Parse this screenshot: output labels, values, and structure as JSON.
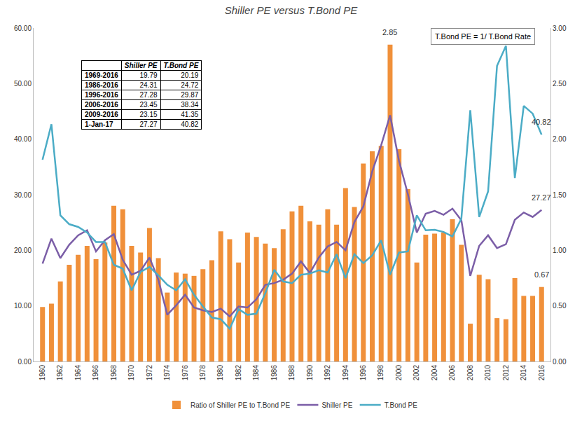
{
  "chart_data": {
    "type": "bar",
    "title": "Shiller PE versus T.Bond PE",
    "note": "T.Bond PE = 1/ T.Bond Rate",
    "x": [
      1960,
      1961,
      1962,
      1963,
      1964,
      1965,
      1966,
      1967,
      1968,
      1969,
      1970,
      1971,
      1972,
      1973,
      1974,
      1975,
      1976,
      1977,
      1978,
      1979,
      1980,
      1981,
      1982,
      1983,
      1984,
      1985,
      1986,
      1987,
      1988,
      1989,
      1990,
      1991,
      1992,
      1993,
      1994,
      1995,
      1996,
      1997,
      1998,
      1999,
      2000,
      2001,
      2002,
      2003,
      2004,
      2005,
      2006,
      2007,
      2008,
      2009,
      2010,
      2011,
      2012,
      2013,
      2014,
      2015,
      2016
    ],
    "xlim": [
      1959,
      2017
    ],
    "xticks": [
      1960,
      1962,
      1964,
      1966,
      1968,
      1970,
      1972,
      1974,
      1976,
      1978,
      1980,
      1982,
      1984,
      1986,
      1988,
      1990,
      1992,
      1994,
      1996,
      1998,
      2000,
      2002,
      2004,
      2006,
      2008,
      2010,
      2012,
      2014,
      2016
    ],
    "ylim": [
      0,
      60
    ],
    "yticks": [
      {
        "value": 0,
        "label": "0.00"
      },
      {
        "value": 10,
        "label": "10.00"
      },
      {
        "value": 20,
        "label": "20.00"
      },
      {
        "value": 30,
        "label": "30.00"
      },
      {
        "value": 40,
        "label": "40.00"
      },
      {
        "value": 50,
        "label": "50.00"
      },
      {
        "value": 60,
        "label": "60.00"
      }
    ],
    "y2lim": [
      0,
      3
    ],
    "y2ticks": [
      {
        "value": 0,
        "label": "0.00"
      },
      {
        "value": 0.5,
        "label": "0.50"
      },
      {
        "value": 1,
        "label": "1.00"
      },
      {
        "value": 1.5,
        "label": "1.50"
      },
      {
        "value": 2,
        "label": "2.00"
      },
      {
        "value": 2.5,
        "label": "2.50"
      },
      {
        "value": 3,
        "label": "3.00"
      }
    ],
    "grid": false,
    "legend": "bottom",
    "series": [
      {
        "name": "Ratio of Shiller PE to T.Bond PE",
        "type": "bar",
        "axis": "y2",
        "color": "#f0903a",
        "values": [
          0.49,
          0.52,
          0.72,
          0.87,
          0.96,
          1.04,
          0.92,
          1.07,
          1.4,
          1.37,
          1.04,
          0.98,
          1.2,
          0.93,
          0.62,
          0.8,
          0.79,
          0.77,
          0.83,
          0.91,
          1.17,
          1.1,
          0.89,
          1.16,
          1.12,
          1.06,
          1.02,
          1.19,
          1.35,
          1.4,
          1.26,
          1.23,
          1.37,
          1.23,
          1.56,
          1.39,
          1.78,
          1.89,
          1.94,
          2.85,
          1.91,
          1.55,
          0.89,
          1.14,
          1.15,
          1.16,
          1.28,
          1.05,
          0.34,
          0.78,
          0.74,
          0.39,
          0.38,
          0.75,
          0.59,
          0.59,
          0.67
        ]
      },
      {
        "name": "Shiller PE",
        "type": "line",
        "color": "#7b5ea7",
        "values": [
          17.6,
          22.1,
          18.6,
          21.0,
          22.7,
          23.6,
          19.8,
          21.8,
          22.9,
          18.3,
          15.6,
          16.3,
          18.7,
          14.7,
          8.4,
          10.1,
          12.0,
          9.7,
          9.2,
          8.9,
          9.5,
          8.1,
          9.9,
          9.7,
          11.2,
          13.8,
          14.1,
          14.7,
          15.8,
          18.0,
          15.9,
          18.7,
          20.7,
          21.5,
          20.0,
          25.1,
          27.9,
          34.2,
          38.9,
          44.3,
          36.1,
          30.1,
          23.2,
          26.6,
          27.1,
          26.4,
          27.5,
          25.4,
          15.4,
          20.8,
          22.7,
          20.4,
          21.1,
          25.5,
          26.8,
          26.0,
          27.27
        ]
      },
      {
        "name": "T.Bond PE",
        "type": "line",
        "color": "#4bacc6",
        "values": [
          36.3,
          42.7,
          26.3,
          24.7,
          24.2,
          23.2,
          21.5,
          21.5,
          17.4,
          16.7,
          12.8,
          16.1,
          17.0,
          15.5,
          13.8,
          12.8,
          14.8,
          12.0,
          9.9,
          7.9,
          7.6,
          5.9,
          9.4,
          8.4,
          8.6,
          12.3,
          16.5,
          14.4,
          14.1,
          15.6,
          15.8,
          16.4,
          16.0,
          19.3,
          15.0,
          19.3,
          17.7,
          19.1,
          21.8,
          15.6,
          19.6,
          19.8,
          26.3,
          23.6,
          23.7,
          23.3,
          22.5,
          25.7,
          45.2,
          26.0,
          30.6,
          53.2,
          56.8,
          33.0,
          46.0,
          44.6,
          40.82
        ]
      }
    ],
    "annotations": [
      {
        "text": "2.85",
        "x": 1999,
        "y": 2.85,
        "axis": "y2"
      },
      {
        "text": "40.82",
        "x": 2016,
        "y": 40.82,
        "axis": "y"
      },
      {
        "text": "27.27",
        "x": 2016,
        "y": 27.27,
        "axis": "y"
      },
      {
        "text": "0.67",
        "x": 2016,
        "y": 0.67,
        "axis": "y2"
      }
    ],
    "inset_table": {
      "header": [
        "",
        "Shiller PE",
        "T.Bond PE"
      ],
      "rows": [
        [
          "1969-2016",
          19.79,
          20.19
        ],
        [
          "1986-2016",
          24.31,
          24.72
        ],
        [
          "1996-2016",
          27.28,
          29.87
        ],
        [
          "2006-2016",
          23.45,
          38.34
        ],
        [
          "2009-2016",
          23.15,
          41.35
        ],
        [
          "1-Jan-17",
          27.27,
          40.82
        ]
      ]
    }
  }
}
